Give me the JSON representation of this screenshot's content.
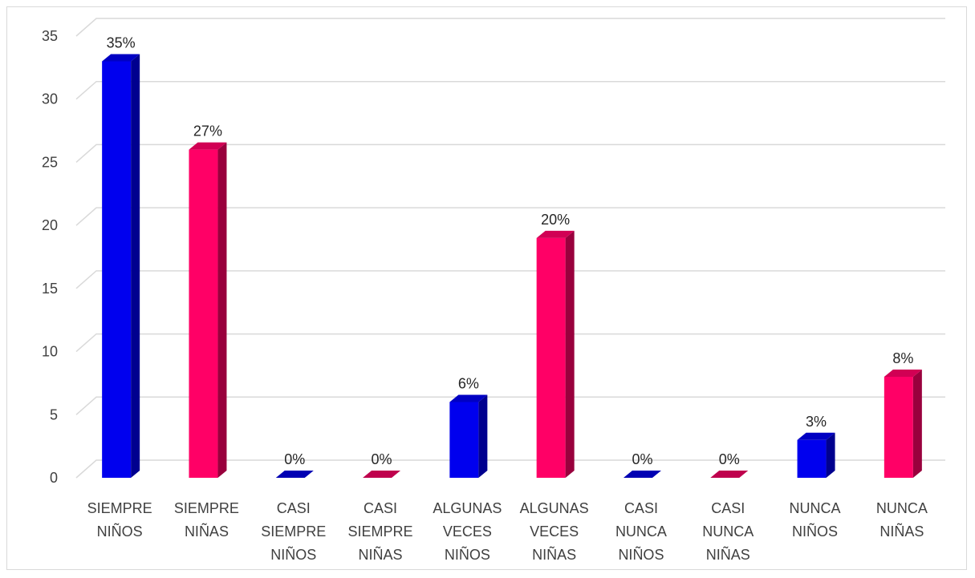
{
  "chart_data": {
    "type": "bar",
    "title": "",
    "xlabel": "",
    "ylabel": "",
    "ylim": [
      0,
      35
    ],
    "yticks": [
      0,
      5,
      10,
      15,
      20,
      25,
      30,
      35
    ],
    "grid": true,
    "legend": "none",
    "categories": [
      [
        "SIEMPRE",
        "NIÑOS"
      ],
      [
        "SIEMPRE",
        "NIÑAS"
      ],
      [
        "CASI",
        "SIEMPRE",
        "NIÑOS"
      ],
      [
        "CASI",
        "SIEMPRE",
        "NIÑAS"
      ],
      [
        "ALGUNAS",
        "VECES",
        "NIÑOS"
      ],
      [
        "ALGUNAS",
        "VECES",
        "NIÑAS"
      ],
      [
        "CASI",
        "NUNCA",
        "NIÑOS"
      ],
      [
        "CASI",
        "NUNCA",
        "NIÑAS"
      ],
      [
        "NUNCA",
        "NIÑOS"
      ],
      [
        "NUNCA",
        "NIÑAS"
      ]
    ],
    "values": [
      33,
      26,
      0,
      0,
      6,
      19,
      0,
      0,
      3,
      8
    ],
    "data_labels": [
      "35%",
      "27%",
      "0%",
      "0%",
      "6%",
      "20%",
      "0%",
      "0%",
      "3%",
      "8%"
    ],
    "colors": [
      "#0000ee",
      "#ff0066",
      "#0000ee",
      "#ff0066",
      "#0000ee",
      "#ff0066",
      "#0000ee",
      "#ff0066",
      "#0000ee",
      "#ff0066"
    ]
  }
}
